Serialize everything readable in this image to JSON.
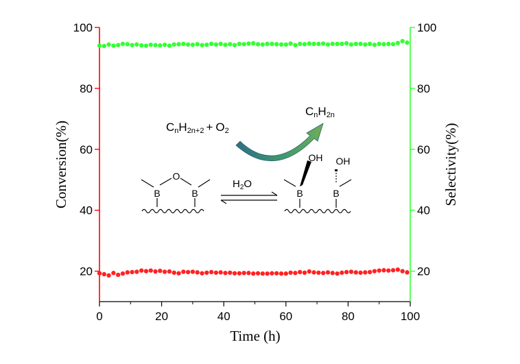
{
  "chart_data": {
    "type": "scatter",
    "xlabel": "Time (h)",
    "ylabel_left": "Conversion(%)",
    "ylabel_right": "Selectivity(%)",
    "xlim": [
      0,
      100
    ],
    "ylim_left": [
      10,
      100
    ],
    "ylim_right": [
      10,
      100
    ],
    "xticks": [
      "0",
      "20",
      "40",
      "60",
      "80",
      "100"
    ],
    "yticks_left": [
      "20",
      "40",
      "60",
      "80",
      "100"
    ],
    "yticks_right": [
      "20",
      "40",
      "60",
      "80",
      "100"
    ],
    "grid": false,
    "left_axis_color": "#ff0000",
    "right_axis_color": "#33ff33",
    "series": [
      {
        "axis": "right",
        "color": "#33ff33",
        "x": [
          0,
          1.5,
          3,
          4.5,
          6,
          7.5,
          9,
          10.5,
          12,
          13.5,
          15,
          16.5,
          18,
          19.5,
          21,
          22.5,
          24,
          25.5,
          27,
          28.5,
          30,
          31.5,
          33,
          34.5,
          36,
          37.5,
          39,
          40.5,
          42,
          43.5,
          45,
          46.5,
          48,
          49.5,
          51,
          52.5,
          54,
          55.5,
          57,
          58.5,
          60,
          61.5,
          63,
          64.5,
          66,
          67.5,
          69,
          70.5,
          72,
          73.5,
          75,
          76.5,
          78,
          79.5,
          81,
          82.5,
          84,
          85.5,
          87,
          88.5,
          90,
          91.5,
          93,
          94.5,
          96,
          97.5,
          99
        ],
        "values": [
          94.0,
          93.9,
          94.4,
          94.0,
          94.2,
          94.6,
          94.5,
          94.2,
          94.4,
          94.1,
          94.0,
          94.3,
          94.2,
          94.1,
          94.3,
          94.0,
          94.4,
          94.5,
          94.6,
          94.4,
          94.3,
          94.5,
          94.2,
          94.3,
          94.6,
          94.4,
          94.6,
          94.3,
          94.5,
          94.2,
          94.6,
          94.5,
          94.7,
          94.8,
          94.5,
          94.4,
          94.6,
          94.6,
          94.5,
          94.4,
          94.4,
          94.7,
          94.2,
          94.6,
          94.5,
          94.7,
          94.6,
          94.6,
          94.7,
          94.4,
          94.6,
          94.6,
          94.6,
          94.8,
          94.4,
          94.6,
          94.6,
          94.4,
          94.6,
          94.3,
          94.6,
          94.5,
          94.6,
          94.5,
          94.9,
          95.5,
          95.0
        ]
      },
      {
        "axis": "left",
        "color": "#ff2222",
        "x": [
          0,
          1.5,
          3,
          4.5,
          6,
          7.5,
          9,
          10.5,
          12,
          13.5,
          15,
          16.5,
          18,
          19.5,
          21,
          22.5,
          24,
          25.5,
          27,
          28.5,
          30,
          31.5,
          33,
          34.5,
          36,
          37.5,
          39,
          40.5,
          42,
          43.5,
          45,
          46.5,
          48,
          49.5,
          51,
          52.5,
          54,
          55.5,
          57,
          58.5,
          60,
          61.5,
          63,
          64.5,
          66,
          67.5,
          69,
          70.5,
          72,
          73.5,
          75,
          76.5,
          78,
          79.5,
          81,
          82.5,
          84,
          85.5,
          87,
          88.5,
          90,
          91.5,
          93,
          94.5,
          96,
          97.5,
          99
        ],
        "values": [
          19.3,
          19.0,
          18.6,
          19.4,
          18.8,
          19.2,
          19.6,
          19.7,
          19.8,
          20.2,
          20.0,
          20.2,
          19.9,
          20.1,
          19.8,
          19.9,
          19.5,
          19.3,
          19.8,
          19.7,
          19.8,
          19.6,
          19.3,
          19.5,
          19.7,
          19.5,
          19.6,
          19.4,
          19.5,
          19.3,
          19.3,
          19.4,
          19.4,
          19.2,
          19.3,
          19.2,
          19.2,
          19.3,
          19.3,
          19.2,
          19.2,
          19.5,
          19.4,
          19.7,
          19.5,
          19.9,
          19.6,
          19.5,
          19.4,
          19.6,
          19.4,
          19.2,
          19.5,
          19.7,
          19.8,
          19.6,
          19.5,
          19.6,
          19.7,
          20.0,
          20.2,
          20.3,
          20.2,
          20.3,
          20.5,
          20.0,
          19.6
        ]
      }
    ]
  },
  "scheme": {
    "reactant_main": "C",
    "reactant_sub1": "n",
    "reactant_mid": "H",
    "reactant_sub2": "2n+2",
    "plus": "+",
    "oxygen_main": "O",
    "oxygen_sub": "2",
    "product_main": "C",
    "product_sub1": "n",
    "product_mid": "H",
    "product_sub2": "2n",
    "water_main": "H",
    "water_sub": "2",
    "water_end": "O",
    "atom_b": "B",
    "atom_o": "O",
    "hydroxyl": "OH",
    "arrow_color": "#3e8a72"
  }
}
